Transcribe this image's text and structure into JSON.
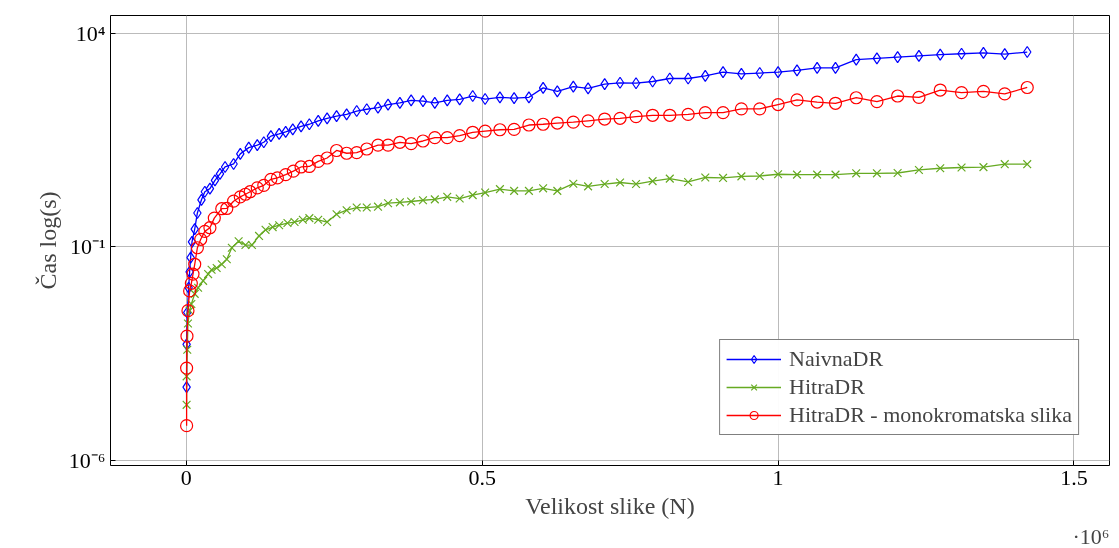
{
  "chart_data": {
    "type": "line",
    "xlabel": "Velikost slike (N)",
    "ylabel": "Čas log(s)",
    "annotations": [
      "·10⁶"
    ],
    "log": "y",
    "grid": true,
    "legend": "bottom right",
    "xlim": [
      -0.128,
      1.56
    ],
    "xticks": [
      0,
      0.5,
      1,
      1.5
    ],
    "ylim": [
      7.6e-07,
      26000
    ],
    "yticks": [
      {
        "value": 1e-06,
        "label": "10⁻⁶"
      },
      {
        "value": 0.1,
        "label": "10⁻¹"
      },
      {
        "value": 10000,
        "label": "10⁴"
      }
    ],
    "series": [
      {
        "name": "NaivnaDR",
        "color": "#0000ff",
        "marker": "diamond",
        "x": [
          0.0006,
          0.0006,
          0.0017,
          0.004,
          0.0057,
          0.0074,
          0.0097,
          0.0143,
          0.0188,
          0.0257,
          0.0314,
          0.04,
          0.0485,
          0.057,
          0.0656,
          0.08,
          0.0913,
          0.1056,
          0.12,
          0.131,
          0.143,
          0.157,
          0.168,
          0.18,
          0.194,
          0.208,
          0.223,
          0.238,
          0.254,
          0.271,
          0.288,
          0.305,
          0.324,
          0.341,
          0.361,
          0.38,
          0.4,
          0.42,
          0.441,
          0.462,
          0.484,
          0.505,
          0.53,
          0.554,
          0.579,
          0.603,
          0.627,
          0.654,
          0.679,
          0.707,
          0.733,
          0.76,
          0.788,
          0.817,
          0.848,
          0.877,
          0.907,
          0.938,
          0.969,
          1.0,
          1.032,
          1.066,
          1.097,
          1.132,
          1.167,
          1.202,
          1.238,
          1.274,
          1.31,
          1.347,
          1.383,
          1.421
        ],
        "values": [
          5.2e-05,
          0.00052,
          0.0029,
          0.011,
          0.026,
          0.056,
          0.13,
          0.26,
          0.62,
          1.26,
          1.95,
          2.3,
          3.6,
          5.1,
          7.4,
          8.7,
          15,
          21,
          24,
          28,
          39,
          44,
          49,
          56,
          66,
          74,
          89,
          102,
          115,
          126,
          151,
          166,
          182,
          214,
          234,
          269,
          257,
          234,
          269,
          282,
          339,
          288,
          316,
          302,
          316,
          525,
          436,
          562,
          513,
          646,
          692,
          676,
          741,
          871,
          871,
          1000,
          1230,
          1120,
          1170,
          1230,
          1350,
          1550,
          1550,
          2400,
          2570,
          2760,
          2950,
          3160,
          3310,
          3470,
          3240,
          3630
        ]
      },
      {
        "name": "HitraDR",
        "color": "#66aa22",
        "marker": "cross",
        "x": [
          0.0006,
          0.0006,
          0.0017,
          0.0029,
          0.0057,
          0.0086,
          0.0143,
          0.02,
          0.0285,
          0.037,
          0.0428,
          0.0514,
          0.06,
          0.0685,
          0.077,
          0.0885,
          0.1,
          0.111,
          0.123,
          0.134,
          0.146,
          0.157,
          0.171,
          0.183,
          0.197,
          0.208,
          0.223,
          0.238,
          0.254,
          0.271,
          0.288,
          0.305,
          0.324,
          0.341,
          0.361,
          0.38,
          0.4,
          0.42,
          0.441,
          0.462,
          0.484,
          0.505,
          0.53,
          0.554,
          0.579,
          0.603,
          0.627,
          0.654,
          0.679,
          0.707,
          0.733,
          0.76,
          0.788,
          0.817,
          0.848,
          0.877,
          0.907,
          0.938,
          0.969,
          1.0,
          1.032,
          1.066,
          1.097,
          1.132,
          1.167,
          1.202,
          1.238,
          1.274,
          1.31,
          1.347,
          1.383,
          1.421
        ],
        "values": [
          2e-05,
          9.3e-05,
          0.00039,
          0.0016,
          0.0032,
          0.0046,
          0.0079,
          0.011,
          0.016,
          0.023,
          0.029,
          0.032,
          0.039,
          0.051,
          0.095,
          0.135,
          0.11,
          0.11,
          0.18,
          0.25,
          0.29,
          0.32,
          0.36,
          0.38,
          0.43,
          0.47,
          0.43,
          0.38,
          0.58,
          0.72,
          0.83,
          0.83,
          0.87,
          1.05,
          1.1,
          1.15,
          1.23,
          1.29,
          1.48,
          1.35,
          1.62,
          1.86,
          2.24,
          2.04,
          2.04,
          2.34,
          2.04,
          3.0,
          2.6,
          2.95,
          3.2,
          2.95,
          3.45,
          3.95,
          3.3,
          4.2,
          4.1,
          4.45,
          4.55,
          5.0,
          4.9,
          4.9,
          4.9,
          5.25,
          5.25,
          5.35,
          6.3,
          6.9,
          7.2,
          7.35,
          8.6,
          8.6
        ]
      },
      {
        "name": "HitraDR - monokromatska slika",
        "color": "#ff0000",
        "marker": "circle",
        "x": [
          0.0006,
          0.0006,
          0.0012,
          0.0029,
          0.0057,
          0.0086,
          0.0114,
          0.0143,
          0.0188,
          0.0245,
          0.0314,
          0.04,
          0.0474,
          0.06,
          0.0685,
          0.08,
          0.0913,
          0.1,
          0.108,
          0.12,
          0.131,
          0.143,
          0.154,
          0.168,
          0.181,
          0.194,
          0.208,
          0.223,
          0.238,
          0.254,
          0.271,
          0.288,
          0.305,
          0.324,
          0.341,
          0.361,
          0.38,
          0.4,
          0.42,
          0.441,
          0.462,
          0.484,
          0.505,
          0.53,
          0.554,
          0.579,
          0.603,
          0.627,
          0.654,
          0.679,
          0.707,
          0.733,
          0.76,
          0.788,
          0.817,
          0.848,
          0.877,
          0.907,
          0.938,
          0.969,
          1.0,
          1.032,
          1.066,
          1.097,
          1.132,
          1.167,
          1.202,
          1.238,
          1.274,
          1.31,
          1.347,
          1.383,
          1.421
        ],
        "values": [
          6.5e-06,
          0.000145,
          0.00081,
          0.0032,
          0.0093,
          0.014,
          0.023,
          0.039,
          0.095,
          0.15,
          0.23,
          0.28,
          0.47,
          0.78,
          0.79,
          1.17,
          1.48,
          1.7,
          1.95,
          2.4,
          2.75,
          3.8,
          4.1,
          4.9,
          5.9,
          7.4,
          7.6,
          10,
          12,
          18,
          15.5,
          16,
          19.5,
          24,
          24,
          28,
          26,
          30,
          36,
          36,
          40,
          48,
          51,
          55,
          56,
          71,
          74,
          79,
          83,
          89,
          98,
          102,
          112,
          120,
          120,
          126,
          138,
          138,
          170,
          170,
          214,
          275,
          245,
          229,
          309,
          251,
          339,
          316,
          468,
          407,
          436,
          380,
          537
        ]
      }
    ]
  }
}
